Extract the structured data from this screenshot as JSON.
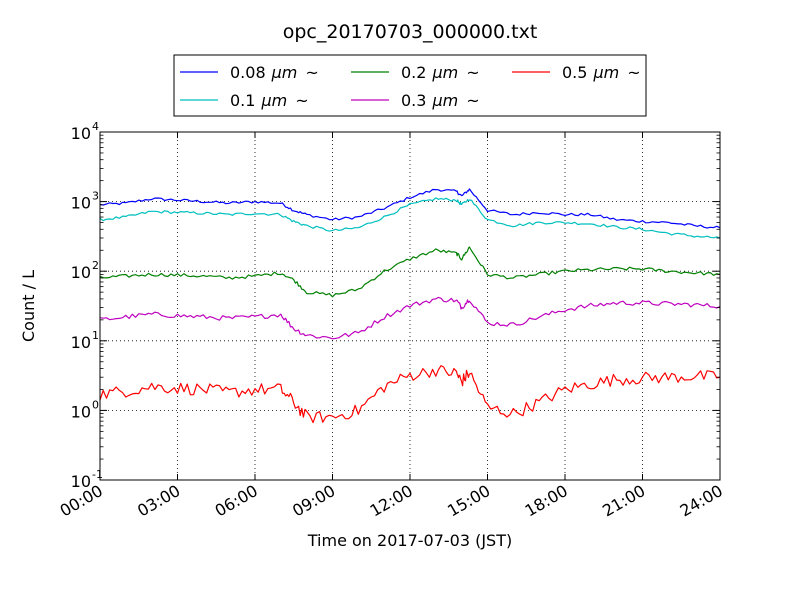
{
  "chart_data": {
    "type": "line",
    "title": "opc_20170703_000000.txt",
    "xlabel": "Time on 2017-07-03 (JST)",
    "ylabel": "Count / L",
    "x_unit": "hours",
    "xlim": [
      0,
      24
    ],
    "ylim": [
      0.1,
      10000
    ],
    "yscale": "log",
    "grid": true,
    "legend_placement": "top-center, above plot, 3 columns",
    "x_tick_labels": [
      "00:00",
      "03:00",
      "06:00",
      "09:00",
      "12:00",
      "15:00",
      "18:00",
      "21:00",
      "24:00"
    ],
    "y_tick_labels": [
      {
        "base": "10",
        "exp": "-1"
      },
      {
        "base": "10",
        "exp": "0"
      },
      {
        "base": "10",
        "exp": "1"
      },
      {
        "base": "10",
        "exp": "2"
      },
      {
        "base": "10",
        "exp": "3"
      },
      {
        "base": "10",
        "exp": "4"
      }
    ],
    "x": [
      0,
      1,
      2,
      3,
      4,
      5,
      6,
      7,
      7.5,
      8,
      9,
      10,
      11,
      12,
      13,
      13.8,
      14,
      14.3,
      15,
      16,
      17,
      18,
      19,
      20,
      21,
      22,
      23,
      24
    ],
    "series": [
      {
        "name": "0.08 μm ~",
        "label_main": "0.08",
        "label_unit": "μm",
        "label_tilde": "~",
        "color": "#0000ff",
        "values": [
          900,
          950,
          1100,
          1050,
          1000,
          950,
          1000,
          950,
          750,
          650,
          550,
          600,
          800,
          1150,
          1500,
          1400,
          1200,
          1500,
          750,
          650,
          700,
          650,
          650,
          550,
          520,
          500,
          450,
          420
        ]
      },
      {
        "name": "0.1 μm ~",
        "label_main": "0.1",
        "label_unit": "μm",
        "label_tilde": "~",
        "color": "#00bfbf",
        "values": [
          550,
          600,
          720,
          700,
          680,
          650,
          680,
          650,
          520,
          450,
          380,
          420,
          600,
          900,
          1100,
          1050,
          900,
          1100,
          550,
          450,
          500,
          500,
          480,
          430,
          400,
          350,
          320,
          300
        ]
      },
      {
        "name": "0.2 μm ~",
        "label_main": "0.2",
        "label_unit": "μm",
        "label_tilde": "~",
        "color": "#008000",
        "values": [
          80,
          85,
          90,
          88,
          85,
          80,
          85,
          95,
          75,
          50,
          45,
          55,
          100,
          150,
          200,
          180,
          150,
          220,
          90,
          80,
          90,
          100,
          105,
          108,
          108,
          100,
          95,
          90
        ]
      },
      {
        "name": "0.3 μm ~",
        "label_main": "0.3",
        "label_unit": "μm",
        "label_tilde": "~",
        "color": "#bf00bf",
        "values": [
          20,
          22,
          24,
          23,
          22,
          21,
          22,
          24,
          15,
          12,
          11,
          13,
          22,
          32,
          40,
          38,
          30,
          40,
          18,
          17,
          22,
          28,
          32,
          35,
          35,
          34,
          33,
          31
        ]
      },
      {
        "name": "0.5 μm ~",
        "label_main": "0.5",
        "label_unit": "μm",
        "label_tilde": "~",
        "color": "#ff0000",
        "values": [
          1.7,
          1.9,
          2.2,
          2.1,
          2.0,
          1.8,
          2.0,
          2.0,
          1.3,
          0.8,
          0.8,
          1.0,
          2.2,
          3.2,
          3.8,
          3.4,
          2.6,
          3.5,
          1.1,
          0.9,
          1.3,
          2.0,
          2.4,
          2.8,
          2.9,
          3.0,
          3.1,
          3.0
        ]
      }
    ]
  }
}
